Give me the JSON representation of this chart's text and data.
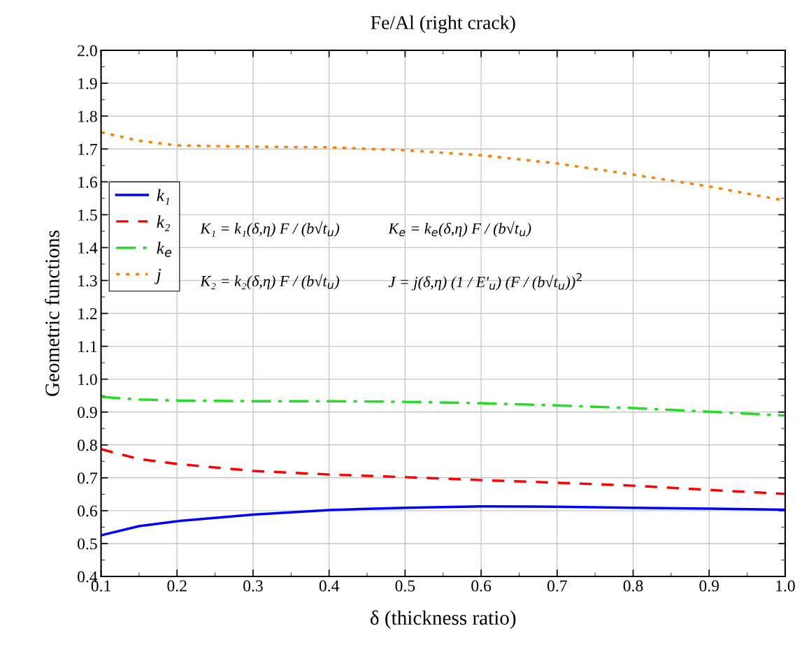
{
  "chart_data": {
    "type": "line",
    "title": "Fe/Al (right crack)",
    "xlabel": "δ (thickness ratio)",
    "ylabel": "Geometric functions",
    "x": [
      0.1,
      0.15,
      0.2,
      0.3,
      0.4,
      0.5,
      0.6,
      0.7,
      0.8,
      0.9,
      1.0
    ],
    "series": [
      {
        "name": "k₁",
        "color": "#0000ff",
        "line_style": "solid",
        "values": [
          0.525,
          0.553,
          0.568,
          0.588,
          0.602,
          0.609,
          0.613,
          0.612,
          0.609,
          0.606,
          0.603
        ]
      },
      {
        "name": "k₂",
        "color": "#ff0000",
        "line_style": "dashed",
        "values": [
          0.787,
          0.757,
          0.742,
          0.721,
          0.71,
          0.702,
          0.693,
          0.685,
          0.676,
          0.663,
          0.651
        ]
      },
      {
        "name": "k$_{e}$",
        "color": "#22dd22",
        "line_style": "dashdot",
        "values": [
          0.946,
          0.938,
          0.935,
          0.933,
          0.933,
          0.931,
          0.927,
          0.92,
          0.912,
          0.901,
          0.889
        ]
      },
      {
        "name": "j",
        "color": "#ff8000",
        "line_style": "dotted",
        "values": [
          1.751,
          1.725,
          1.711,
          1.707,
          1.705,
          1.696,
          1.681,
          1.656,
          1.622,
          1.586,
          1.543
        ]
      }
    ],
    "xlim": [
      0.1,
      1.0
    ],
    "xticks": [
      0.1,
      0.2,
      0.3,
      0.4,
      0.5,
      0.6,
      0.7,
      0.8,
      0.9,
      {
        "value": 1.0,
        "label": "1.0"
      }
    ],
    "ylim": [
      0.4,
      2.0
    ],
    "yticks": [
      0.4,
      0.5,
      0.6,
      0.7,
      0.8,
      0.9,
      {
        "value": 1.0,
        "label": "1.0"
      },
      1.1,
      1.2,
      1.3,
      1.4,
      1.5,
      1.6,
      1.7,
      1.8,
      1.9,
      {
        "value": 2.0,
        "label": "2.0"
      }
    ],
    "grid": true,
    "legend": "left",
    "marker": "none",
    "annotations": [
      "K₁ = k₁(δ,η) F / (b√t$_{u}$)",
      "K$_{e}$ = k$_{e}$(δ,η) F / (b√t$_{u}$)",
      "K₂ = k₂(δ,η) F / (b√t$_{u}$)",
      "J = j(δ,η) (1 / E'$_{u}$) (F / (b√t$_{u}$))$^{2}$"
    ]
  }
}
